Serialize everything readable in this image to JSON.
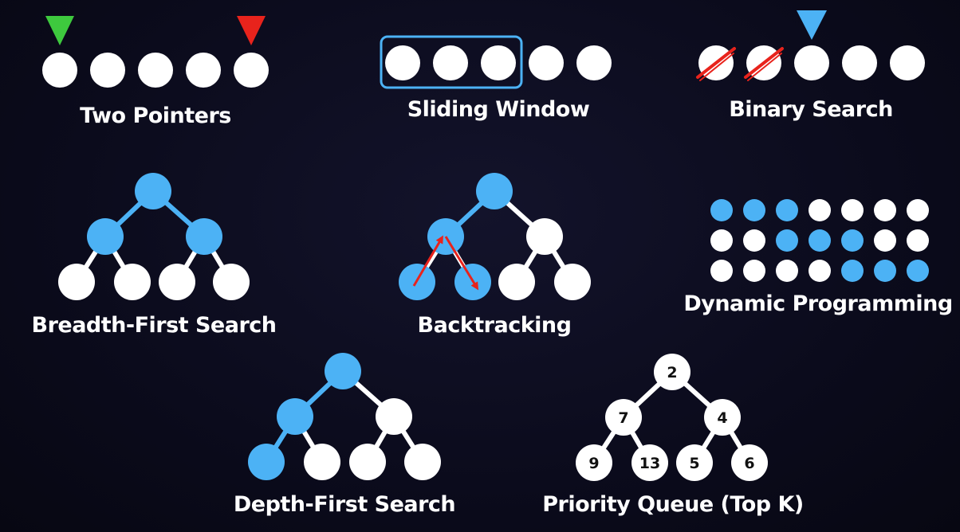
{
  "colors": {
    "background": "#0b0b1c",
    "node": "#ffffff",
    "highlight": "#4cb2f5",
    "start_marker": "#3ec93e",
    "end_marker": "#e8231c",
    "arrow": "#e8231c",
    "label": "#ffffff"
  },
  "labels": {
    "two_pointers": "Two Pointers",
    "sliding_window": "Sliding Window",
    "binary_search": "Binary Search",
    "bfs": "Breadth-First Search",
    "backtracking": "Backtracking",
    "dynamic_programming": "Dynamic Programming",
    "dfs": "Depth-First Search",
    "priority_queue": "Priority Queue (Top K)"
  },
  "priority_queue": {
    "values": [
      "2",
      "7",
      "4",
      "9",
      "13",
      "5",
      "6"
    ]
  },
  "dp_grid": {
    "rows": 3,
    "cols": 7,
    "highlighted": [
      [
        0,
        0
      ],
      [
        0,
        1
      ],
      [
        0,
        2
      ],
      [
        1,
        2
      ],
      [
        1,
        3
      ],
      [
        1,
        4
      ],
      [
        2,
        4
      ],
      [
        2,
        5
      ],
      [
        2,
        6
      ]
    ]
  }
}
